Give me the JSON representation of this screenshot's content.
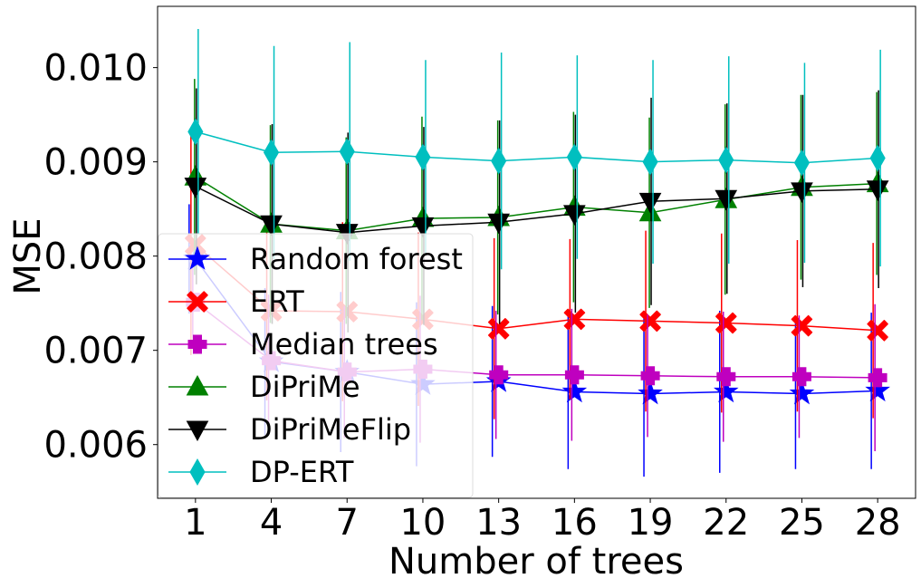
{
  "chart_data": {
    "type": "line",
    "title": "",
    "xlabel": "Number of trees",
    "ylabel": "MSE",
    "x": [
      1,
      4,
      7,
      10,
      13,
      16,
      19,
      22,
      25,
      28
    ],
    "xlim": [
      -0.5,
      29.5
    ],
    "ylim": [
      0.00543,
      0.01065
    ],
    "xticks": [
      "1",
      "4",
      "7",
      "10",
      "13",
      "16",
      "19",
      "22",
      "25",
      "28"
    ],
    "yticks": [
      0.006,
      0.007,
      0.008,
      0.009,
      0.01
    ],
    "ytick_labels": [
      "0.006",
      "0.007",
      "0.008",
      "0.009",
      "0.010"
    ],
    "grid": false,
    "legend_position": "lower-left",
    "series": [
      {
        "name": "Random forest",
        "color": "#0000ff",
        "marker": "star",
        "y": [
          0.00797,
          0.00688,
          0.00677,
          0.00664,
          0.00667,
          0.00656,
          0.00654,
          0.00656,
          0.00654,
          0.00657
        ],
        "err": [
          0.00058,
          0.00078,
          0.00085,
          0.00087,
          0.0008,
          0.00082,
          0.00088,
          0.00086,
          0.0008,
          0.00083
        ]
      },
      {
        "name": "ERT",
        "color": "#ff0000",
        "marker": "x",
        "y": [
          0.00812,
          0.00742,
          0.00741,
          0.00733,
          0.00723,
          0.00733,
          0.00731,
          0.00729,
          0.00726,
          0.00721
        ],
        "err": [
          0.00117,
          0.00095,
          0.00095,
          0.00092,
          0.00096,
          0.00085,
          0.00096,
          0.00095,
          0.00091,
          0.00093
        ]
      },
      {
        "name": "Median trees",
        "color": "#bf00bf",
        "marker": "plus",
        "y": [
          0.00751,
          0.00689,
          0.00677,
          0.0068,
          0.00674,
          0.00674,
          0.00673,
          0.00672,
          0.00672,
          0.00671
        ],
        "err": [
          0.0004,
          0.0007,
          0.0007,
          0.00078,
          0.00068,
          0.0007,
          0.00065,
          0.00069,
          0.00065,
          0.00078
        ]
      },
      {
        "name": "DiPriMe",
        "color": "#008000",
        "marker": "triangle-up",
        "y": [
          0.00884,
          0.00834,
          0.00827,
          0.0084,
          0.00841,
          0.00852,
          0.00846,
          0.0086,
          0.00873,
          0.00877
        ],
        "err": [
          0.00104,
          0.00105,
          0.00099,
          0.00108,
          0.00103,
          0.00101,
          0.00101,
          0.00101,
          0.00098,
          0.00097
        ]
      },
      {
        "name": "DiPriMeFlip",
        "color": "#000000",
        "marker": "triangle-down",
        "y": [
          0.00874,
          0.00834,
          0.00825,
          0.00832,
          0.00836,
          0.00845,
          0.00858,
          0.00861,
          0.00869,
          0.00871
        ],
        "err": [
          0.00104,
          0.00106,
          0.00106,
          0.00105,
          0.00108,
          0.00105,
          0.0011,
          0.00101,
          0.00102,
          0.00105
        ]
      },
      {
        "name": "DP-ERT",
        "color": "#00bfbf",
        "marker": "diamond",
        "y": [
          0.00932,
          0.0091,
          0.00911,
          0.00905,
          0.00901,
          0.00905,
          0.009,
          0.00902,
          0.00899,
          0.00904
        ],
        "err": [
          0.00109,
          0.00113,
          0.00116,
          0.00103,
          0.00115,
          0.00108,
          0.00108,
          0.0011,
          0.00106,
          0.00115
        ]
      }
    ]
  }
}
